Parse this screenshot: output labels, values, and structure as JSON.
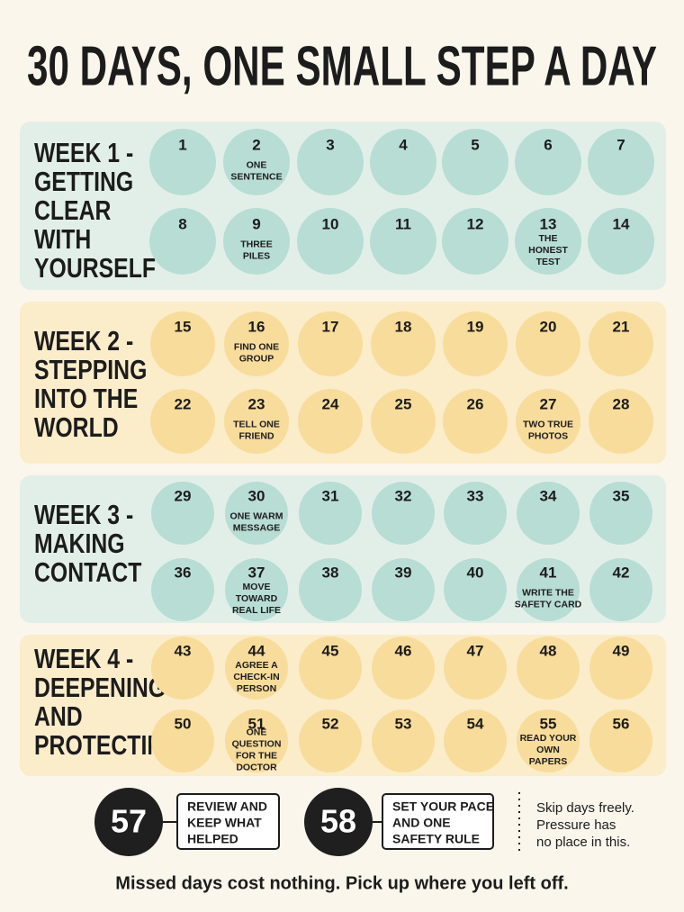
{
  "title": "30 DAYS, ONE SMALL STEP A DAY",
  "weeks": [
    {
      "title_lines": [
        "WEEK 1 -",
        "GETTING",
        "CLEAR",
        "WITH",
        "YOURSELF"
      ],
      "days": [
        {
          "number": 1
        },
        {
          "number": 2,
          "label_lines": [
            "ONE",
            "SENTENCE"
          ]
        },
        {
          "number": 3
        },
        {
          "number": 4
        },
        {
          "number": 5
        },
        {
          "number": 6
        },
        {
          "number": 7
        },
        {
          "number": 8
        },
        {
          "number": 9,
          "label_lines": [
            "THREE",
            "PILES"
          ]
        },
        {
          "number": 10
        },
        {
          "number": 11
        },
        {
          "number": 12
        },
        {
          "number": 13,
          "label_lines": [
            "THE",
            "HONEST",
            "TEST"
          ]
        },
        {
          "number": 14
        }
      ]
    },
    {
      "title_lines": [
        "WEEK 2 -",
        "STEPPING",
        "INTO THE",
        "WORLD"
      ],
      "days": [
        {
          "number": 15
        },
        {
          "number": 16,
          "label_lines": [
            "FIND ONE",
            "GROUP"
          ]
        },
        {
          "number": 17
        },
        {
          "number": 18
        },
        {
          "number": 19
        },
        {
          "number": 20
        },
        {
          "number": 21
        },
        {
          "number": 22
        },
        {
          "number": 23,
          "label_lines": [
            "TELL ONE",
            "FRIEND"
          ]
        },
        {
          "number": 24
        },
        {
          "number": 25
        },
        {
          "number": 26
        },
        {
          "number": 27,
          "label_lines": [
            "TWO TRUE",
            "PHOTOS"
          ]
        },
        {
          "number": 28
        }
      ]
    },
    {
      "title_lines": [
        "WEEK 3 -",
        "MAKING",
        "CONTACT"
      ],
      "days": [
        {
          "number": 29
        },
        {
          "number": 30,
          "label_lines": [
            "ONE WARM",
            "MESSAGE"
          ]
        },
        {
          "number": 31
        },
        {
          "number": 32
        },
        {
          "number": 33
        },
        {
          "number": 34
        },
        {
          "number": 35
        },
        {
          "number": 36
        },
        {
          "number": 37,
          "label_lines": [
            "MOVE",
            "TOWARD",
            "REAL LIFE"
          ]
        },
        {
          "number": 38
        },
        {
          "number": 39
        },
        {
          "number": 40
        },
        {
          "number": 41,
          "label_lines": [
            "WRITE THE",
            "SAFETY CARD"
          ]
        },
        {
          "number": 42
        }
      ]
    },
    {
      "title_lines": [
        "WEEK 4 -",
        "DEEPENING",
        "AND",
        "PROTECTING"
      ],
      "days": [
        {
          "number": 43
        },
        {
          "number": 44,
          "label_lines": [
            "AGREE A",
            "CHECK-IN",
            "PERSON"
          ]
        },
        {
          "number": 45
        },
        {
          "number": 46
        },
        {
          "number": 47
        },
        {
          "number": 48
        },
        {
          "number": 49
        },
        {
          "number": 50
        },
        {
          "number": 51,
          "label_lines": [
            "ONE",
            "QUESTION",
            "FOR THE",
            "DOCTOR"
          ]
        },
        {
          "number": 52
        },
        {
          "number": 53
        },
        {
          "number": 54
        },
        {
          "number": 55,
          "label_lines": [
            "READ YOUR",
            "OWN",
            "PAPERS"
          ]
        },
        {
          "number": 56
        }
      ]
    }
  ],
  "milestones": [
    {
      "number": 57,
      "label_lines": [
        "REVIEW AND",
        "KEEP WHAT",
        "HELPED"
      ]
    },
    {
      "number": 58,
      "label_lines": [
        "SET YOUR PACE",
        "AND ONE",
        "SAFETY RULE"
      ]
    }
  ],
  "side_note_lines": [
    "Skip days freely.",
    "Pressure has",
    "no place in this."
  ],
  "footer": "Missed days cost nothing. Pick up where you left off."
}
